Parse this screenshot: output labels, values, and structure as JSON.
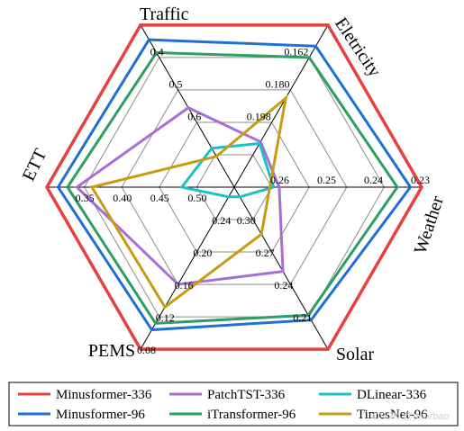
{
  "chart_data": {
    "type": "radar",
    "axes": [
      {
        "name": "Traffic",
        "ticks": [
          "0.4",
          "0.5",
          "0.6"
        ]
      },
      {
        "name": "Eletricity",
        "ticks": [
          "0.162",
          "0.180",
          "0.198"
        ]
      },
      {
        "name": "Weather",
        "ticks": [
          "0.23",
          "0.24",
          "0.25",
          "0.26"
        ]
      },
      {
        "name": "Solar",
        "ticks": [
          "0.21",
          "0.24",
          "0.27",
          "0.30"
        ]
      },
      {
        "name": "PEMS",
        "ticks": [
          "0.08",
          "0.12",
          "0.16",
          "0.20",
          "0.24"
        ]
      },
      {
        "name": "ETT",
        "ticks": [
          "0.35",
          "0.40",
          "0.45",
          "0.50"
        ]
      }
    ],
    "axis_order": [
      "Traffic",
      "Eletricity",
      "Weather",
      "Solar",
      "PEMS",
      "ETT"
    ],
    "note_scale": "fraction of radius from center (1.0 = outer ring)",
    "series": [
      {
        "name": "Minusformer-336",
        "color": "#e8413d",
        "values": [
          1.0,
          1.0,
          1.0,
          1.0,
          1.0,
          1.0
        ]
      },
      {
        "name": "Minusformer-96",
        "color": "#1f6fd6",
        "values": [
          0.91,
          0.87,
          0.94,
          0.82,
          0.88,
          0.94
        ]
      },
      {
        "name": "iTransformer-96",
        "color": "#2e9e62",
        "values": [
          0.83,
          0.8,
          0.87,
          0.79,
          0.84,
          0.89
        ]
      },
      {
        "name": "PatchTST-336",
        "color": "#a86ed7",
        "values": [
          0.49,
          0.28,
          0.24,
          0.52,
          0.6,
          0.84
        ]
      },
      {
        "name": "DLinear-336",
        "color": "#19c3c3",
        "values": [
          0.24,
          0.27,
          0.21,
          0.06,
          0.06,
          0.28
        ]
      },
      {
        "name": "TimesNet-96",
        "color": "#c89b12",
        "values": [
          0.19,
          0.55,
          0.19,
          0.29,
          0.74,
          0.76
        ]
      }
    ]
  },
  "legend": {
    "placement": "bottom",
    "items": [
      {
        "label": "Minusformer-336",
        "color": "#e8413d"
      },
      {
        "label": "PatchTST-336",
        "color": "#a86ed7"
      },
      {
        "label": "DLinear-336",
        "color": "#19c3c3"
      },
      {
        "label": "Minusformer-96",
        "color": "#1f6fd6"
      },
      {
        "label": "iTransformer-96",
        "color": "#2e9e62"
      },
      {
        "label": "TimesNet-96",
        "color": "#c89b12"
      }
    ]
  },
  "watermark": "CSDN @pearbao"
}
